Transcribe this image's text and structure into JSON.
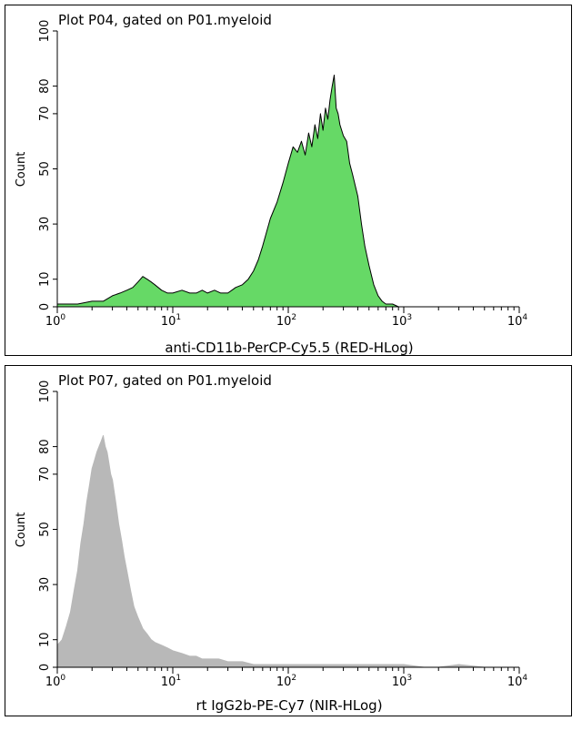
{
  "chart_data": [
    {
      "type": "area",
      "title": "Plot P04, gated on P01.myeloid",
      "xlabel": "anti-CD11b-PerCP-Cy5.5 (RED-HLog)",
      "ylabel": "Count",
      "xscale": "log",
      "xlim": [
        1,
        10000
      ],
      "ylim": [
        0,
        100
      ],
      "x_tick_labels": [
        {
          "base": "10",
          "exp": "0"
        },
        {
          "base": "10",
          "exp": "1"
        },
        {
          "base": "10",
          "exp": "2"
        },
        {
          "base": "10",
          "exp": "3"
        },
        {
          "base": "10",
          "exp": "4"
        }
      ],
      "y_ticks": [
        0,
        10,
        30,
        50,
        70,
        80,
        100
      ],
      "fill_color": "#66d966",
      "stroke_color": "#000000",
      "grid": false,
      "x": [
        1.0,
        1.5,
        2.0,
        2.5,
        3.0,
        3.5,
        4.0,
        4.5,
        5.0,
        5.5,
        6.0,
        6.5,
        7.0,
        8.0,
        9.0,
        10,
        12,
        14,
        16,
        18,
        20,
        23,
        26,
        30,
        35,
        40,
        45,
        50,
        55,
        60,
        70,
        80,
        90,
        100,
        110,
        120,
        130,
        140,
        150,
        160,
        170,
        180,
        190,
        200,
        210,
        220,
        230,
        240,
        250,
        260,
        270,
        280,
        300,
        320,
        340,
        360,
        380,
        400,
        430,
        460,
        500,
        550,
        600,
        650,
        700,
        800,
        900,
        1000
      ],
      "y": [
        1,
        1,
        2,
        2,
        4,
        5,
        6,
        7,
        9,
        11,
        10,
        9,
        8,
        6,
        5,
        5,
        6,
        5,
        5,
        6,
        5,
        6,
        5,
        5,
        7,
        8,
        10,
        13,
        17,
        22,
        32,
        38,
        45,
        52,
        58,
        56,
        60,
        55,
        63,
        58,
        66,
        61,
        70,
        64,
        72,
        68,
        75,
        80,
        84,
        72,
        70,
        66,
        62,
        60,
        52,
        48,
        44,
        40,
        30,
        22,
        15,
        8,
        4,
        2,
        1,
        1,
        0,
        0
      ]
    },
    {
      "type": "area",
      "title": "Plot P07, gated on P01.myeloid",
      "xlabel": "rt IgG2b-PE-Cy7 (NIR-HLog)",
      "ylabel": "Count",
      "xscale": "log",
      "xlim": [
        1,
        10000
      ],
      "ylim": [
        0,
        100
      ],
      "x_tick_labels": [
        {
          "base": "10",
          "exp": "0"
        },
        {
          "base": "10",
          "exp": "1"
        },
        {
          "base": "10",
          "exp": "2"
        },
        {
          "base": "10",
          "exp": "3"
        },
        {
          "base": "10",
          "exp": "4"
        }
      ],
      "y_ticks": [
        0,
        10,
        30,
        50,
        70,
        80,
        100
      ],
      "fill_color": "#b8b8b8",
      "stroke_color": "#b8b8b8",
      "grid": false,
      "x": [
        1.0,
        1.1,
        1.2,
        1.3,
        1.4,
        1.5,
        1.6,
        1.7,
        1.8,
        1.9,
        2.0,
        2.1,
        2.2,
        2.3,
        2.4,
        2.5,
        2.6,
        2.7,
        2.8,
        2.9,
        3.0,
        3.2,
        3.4,
        3.6,
        3.8,
        4.0,
        4.3,
        4.6,
        5.0,
        5.5,
        6.0,
        6.5,
        7.0,
        8.0,
        9.0,
        10,
        12,
        14,
        16,
        18,
        20,
        25,
        30,
        35,
        40,
        50,
        60,
        80,
        100,
        150,
        200,
        300,
        500,
        700,
        1000,
        1500,
        2000,
        3000,
        5000,
        10000
      ],
      "y": [
        8,
        10,
        15,
        20,
        28,
        35,
        45,
        52,
        60,
        66,
        72,
        75,
        78,
        80,
        82,
        84,
        80,
        78,
        74,
        70,
        68,
        60,
        52,
        46,
        40,
        35,
        28,
        22,
        18,
        14,
        12,
        10,
        9,
        8,
        7,
        6,
        5,
        4,
        4,
        3,
        3,
        3,
        2,
        2,
        2,
        1,
        1,
        1,
        1,
        1,
        1,
        1,
        1,
        1,
        1,
        0,
        0,
        1,
        0,
        0
      ]
    }
  ]
}
